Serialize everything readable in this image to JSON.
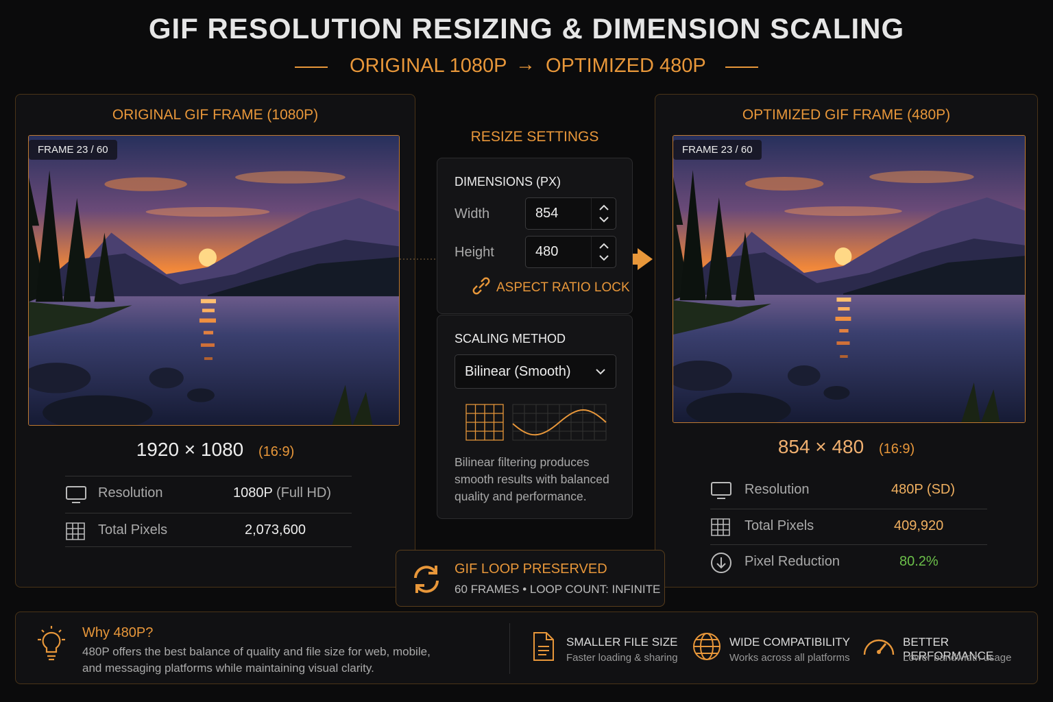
{
  "header": {
    "title": "GIF RESOLUTION RESIZING & DIMENSION SCALING",
    "from": "ORIGINAL 1080P",
    "to": "OPTIMIZED 480P"
  },
  "original": {
    "title": "ORIGINAL GIF FRAME (1080P)",
    "frame_badge": "FRAME 23 / 60",
    "dimensions": "1920 × 1080",
    "ratio": "(16:9)",
    "rows": [
      {
        "label": "Resolution",
        "value": "1080P",
        "note": "(Full HD)"
      },
      {
        "label": "Total Pixels",
        "value": "2,073,600"
      }
    ]
  },
  "settings": {
    "title": "RESIZE SETTINGS",
    "dimensions_label": "DIMENSIONS (PX)",
    "width_label": "Width",
    "width_value": "854",
    "height_label": "Height",
    "height_value": "480",
    "aspect_lock": "ASPECT RATIO LOCK",
    "scaling_label": "SCALING METHOD",
    "scaling_value": "Bilinear (Smooth)",
    "scaling_note": "Bilinear filtering produces smooth results with balanced quality and performance."
  },
  "optimized": {
    "title": "OPTIMIZED GIF FRAME (480P)",
    "frame_badge": "FRAME 23 / 60",
    "dimensions": "854 × 480",
    "ratio": "(16:9)",
    "rows": [
      {
        "label": "Resolution",
        "value": "480P (SD)"
      },
      {
        "label": "Total Pixels",
        "value": "409,920"
      },
      {
        "label": "Pixel Reduction",
        "value": "80.2%"
      }
    ]
  },
  "loop": {
    "title": "GIF LOOP PRESERVED",
    "detail": "60 FRAMES • LOOP COUNT: INFINITE"
  },
  "footer": {
    "why_title": "Why 480P?",
    "why_text": "480P offers the best balance of quality and file size for web, mobile, and messaging platforms while maintaining visual clarity.",
    "features": [
      {
        "title": "SMALLER FILE SIZE",
        "text": "Faster loading & sharing"
      },
      {
        "title": "WIDE COMPATIBILITY",
        "text": "Works across all platforms"
      },
      {
        "title": "BETTER PERFORMANCE",
        "text": "Lower bandwidth usage"
      }
    ]
  }
}
